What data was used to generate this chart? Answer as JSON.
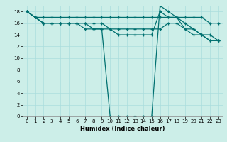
{
  "xlabel": "Humidex (Indice chaleur)",
  "bg_color": "#cceee8",
  "grid_color": "#aadddd",
  "line_color": "#007070",
  "xlim": [
    -0.5,
    23.5
  ],
  "ylim": [
    0,
    19
  ],
  "xticks": [
    0,
    1,
    2,
    3,
    4,
    5,
    6,
    7,
    8,
    9,
    10,
    11,
    12,
    13,
    14,
    15,
    16,
    17,
    18,
    19,
    20,
    21,
    22,
    23
  ],
  "yticks": [
    0,
    2,
    4,
    6,
    8,
    10,
    12,
    14,
    16,
    18
  ],
  "lines": [
    {
      "x": [
        0,
        1,
        2,
        3,
        4,
        5,
        6,
        7,
        8,
        9,
        10,
        11,
        12,
        13,
        14,
        15,
        16,
        17,
        18,
        19,
        20,
        21,
        22,
        23
      ],
      "y": [
        18,
        17,
        17,
        17,
        17,
        17,
        17,
        17,
        17,
        17,
        17,
        17,
        17,
        17,
        17,
        17,
        17,
        17,
        17,
        17,
        17,
        17,
        16,
        16
      ]
    },
    {
      "x": [
        0,
        1,
        2,
        3,
        4,
        5,
        6,
        7,
        8,
        9,
        10,
        11,
        12,
        13,
        14,
        15,
        16,
        17,
        18,
        19,
        20,
        21,
        22,
        23
      ],
      "y": [
        18,
        17,
        16,
        16,
        16,
        16,
        16,
        16,
        16,
        16,
        15,
        15,
        15,
        15,
        15,
        15,
        15,
        16,
        16,
        15,
        14,
        14,
        13,
        13
      ]
    },
    {
      "x": [
        0,
        1,
        2,
        3,
        4,
        5,
        6,
        7,
        8,
        9,
        10,
        11,
        12,
        13,
        14,
        15,
        16,
        17,
        18,
        19,
        20,
        21,
        22,
        23
      ],
      "y": [
        18,
        17,
        16,
        16,
        16,
        16,
        16,
        16,
        15,
        15,
        0,
        0,
        0,
        0,
        0,
        0,
        19,
        18,
        17,
        16,
        15,
        14,
        13,
        13
      ]
    },
    {
      "x": [
        0,
        1,
        2,
        3,
        4,
        5,
        6,
        7,
        8,
        9,
        10,
        11,
        12,
        13,
        14,
        15,
        16,
        17,
        18,
        19,
        20,
        21,
        22,
        23
      ],
      "y": [
        18,
        17,
        16,
        16,
        16,
        16,
        16,
        15,
        15,
        15,
        15,
        14,
        14,
        14,
        14,
        14,
        18,
        17,
        17,
        15,
        15,
        14,
        14,
        13
      ]
    }
  ]
}
